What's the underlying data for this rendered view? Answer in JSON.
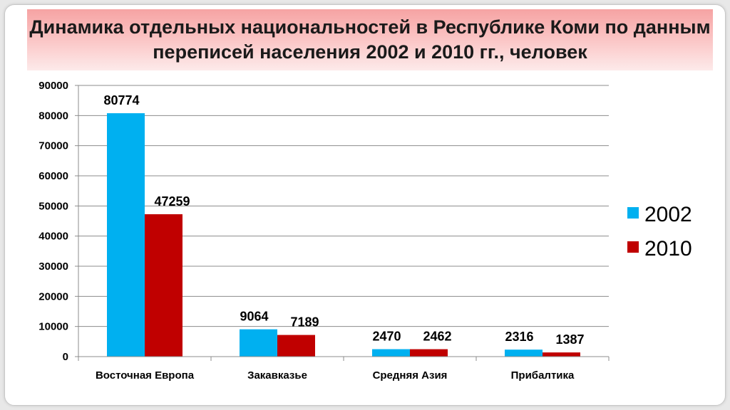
{
  "chart_data": {
    "type": "bar",
    "title": "Динамика отдельных национальностей в Республике Коми по данным переписей населения 2002 и 2010 гг., человек",
    "categories": [
      "Восточная Европа",
      "Закавказье",
      "Средняя Азия",
      "Прибалтика"
    ],
    "series": [
      {
        "name": "2002",
        "values": [
          80774,
          9064,
          2470,
          2316
        ],
        "color": "#00b0f0"
      },
      {
        "name": "2010",
        "values": [
          47259,
          7189,
          2462,
          1387
        ],
        "color": "#c00000"
      }
    ],
    "ylim": [
      0,
      90000
    ],
    "yticks": [
      "0",
      "10000",
      "20000",
      "30000",
      "40000",
      "50000",
      "60000",
      "70000",
      "80000",
      "90000"
    ],
    "grid": true,
    "legend": "right"
  }
}
